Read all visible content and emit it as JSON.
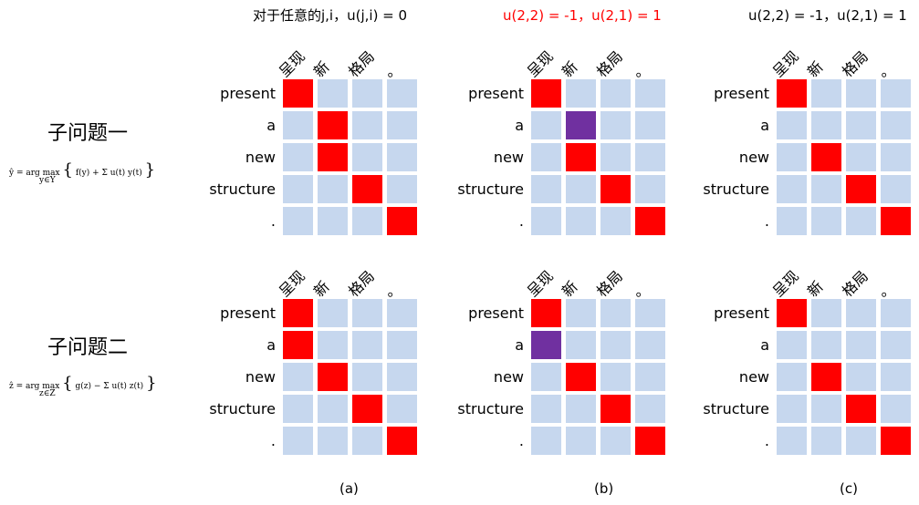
{
  "captions": {
    "a": "对于任意的j,i，u(j,i) = 0",
    "b": "u(2,2) = -1，u(2,1) = 1",
    "c": "u(2,2) = -1，u(2,1) = 1"
  },
  "subproblems": [
    {
      "title": "子问题一",
      "formula_left": "ŷ = arg max",
      "formula_sub": "y∈Y",
      "formula_body": "f(y) + Σ u(t) y(t)",
      "formula_sumsub": "t"
    },
    {
      "title": "子问题二",
      "formula_left": "ẑ = arg max",
      "formula_sub": "z∈Z",
      "formula_body": "g(z) − Σ u(t) z(t)",
      "formula_sumsub": "t"
    }
  ],
  "row_labels": [
    "present",
    "a",
    "new",
    "structure",
    "."
  ],
  "col_labels": [
    "呈现",
    "新",
    "格局",
    "。"
  ],
  "panel_labels": [
    "(a)",
    "(b)",
    "(c)"
  ],
  "colors": {
    "grid": "#c6d7ee",
    "active": "#ff0000",
    "changed": "#7030a0",
    "caption_red": "#ff0000"
  },
  "grids": [
    [
      [
        1,
        0,
        0,
        0
      ],
      [
        0,
        1,
        0,
        0
      ],
      [
        0,
        1,
        0,
        0
      ],
      [
        0,
        0,
        1,
        0
      ],
      [
        0,
        0,
        0,
        1
      ]
    ],
    [
      [
        1,
        0,
        0,
        0
      ],
      [
        0,
        2,
        0,
        0
      ],
      [
        0,
        1,
        0,
        0
      ],
      [
        0,
        0,
        1,
        0
      ],
      [
        0,
        0,
        0,
        1
      ]
    ],
    [
      [
        1,
        0,
        0,
        0
      ],
      [
        0,
        0,
        0,
        0
      ],
      [
        0,
        1,
        0,
        0
      ],
      [
        0,
        0,
        1,
        0
      ],
      [
        0,
        0,
        0,
        1
      ]
    ],
    [
      [
        1,
        0,
        0,
        0
      ],
      [
        1,
        0,
        0,
        0
      ],
      [
        0,
        1,
        0,
        0
      ],
      [
        0,
        0,
        1,
        0
      ],
      [
        0,
        0,
        0,
        1
      ]
    ],
    [
      [
        1,
        0,
        0,
        0
      ],
      [
        2,
        0,
        0,
        0
      ],
      [
        0,
        1,
        0,
        0
      ],
      [
        0,
        0,
        1,
        0
      ],
      [
        0,
        0,
        0,
        1
      ]
    ],
    [
      [
        1,
        0,
        0,
        0
      ],
      [
        0,
        0,
        0,
        0
      ],
      [
        0,
        1,
        0,
        0
      ],
      [
        0,
        0,
        1,
        0
      ],
      [
        0,
        0,
        0,
        1
      ]
    ]
  ]
}
